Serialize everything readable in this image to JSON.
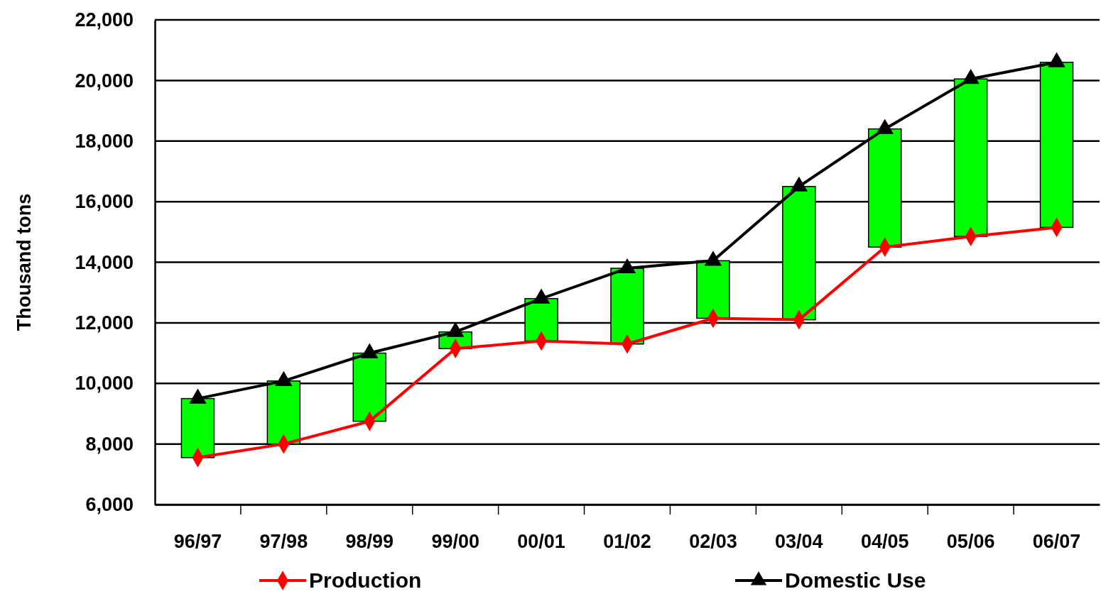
{
  "chart_data": {
    "type": "bar",
    "ylabel": "Thousand tons",
    "categories": [
      "96/97",
      "97/98",
      "98/99",
      "99/00",
      "00/01",
      "01/02",
      "02/03",
      "03/04",
      "04/05",
      "05/06",
      "06/07"
    ],
    "ylim": [
      6000,
      22000
    ],
    "yticks": [
      {
        "value": 6000,
        "label": "6,000"
      },
      {
        "value": 8000,
        "label": "8,000"
      },
      {
        "value": 10000,
        "label": "10,000"
      },
      {
        "value": 12000,
        "label": "12,000"
      },
      {
        "value": 14000,
        "label": "14,000"
      },
      {
        "value": 16000,
        "label": "16,000"
      },
      {
        "value": 18000,
        "label": "18,000"
      },
      {
        "value": 20000,
        "label": "20,000"
      },
      {
        "value": 22000,
        "label": "22,000"
      }
    ],
    "grid": "y",
    "legend": "bottom",
    "series": [
      {
        "color": "#00ff00",
        "base": [
          7550,
          8000,
          8750,
          11150,
          11400,
          11300,
          12150,
          12100,
          14500,
          14850,
          15150
        ],
        "values": [
          1950,
          2080,
          2250,
          550,
          1400,
          2500,
          1900,
          4400,
          3900,
          5200,
          5450
        ]
      },
      {
        "type": "line",
        "name": "Production",
        "color": "#ff0000",
        "marker": "diamond",
        "values": [
          7550,
          8000,
          8750,
          11150,
          11400,
          11300,
          12150,
          12100,
          14500,
          14850,
          15150
        ]
      },
      {
        "type": "line",
        "name": "Domestic Use",
        "color": "#000000",
        "marker": "triangle",
        "values": [
          9500,
          10080,
          11000,
          11700,
          12800,
          13800,
          14050,
          16500,
          18400,
          20050,
          20600
        ]
      }
    ]
  }
}
